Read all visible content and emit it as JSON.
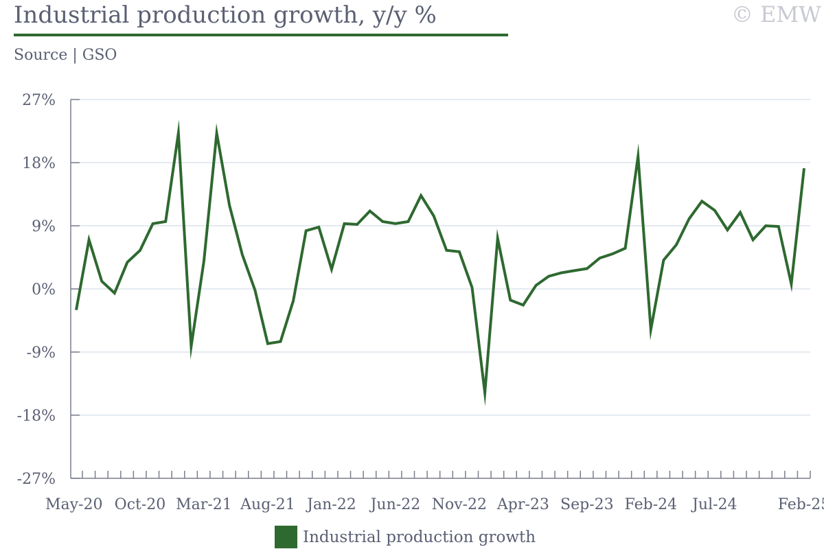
{
  "header": {
    "title": "Industrial production growth, y/y %",
    "source": "Source | GSO",
    "watermark": "© EMW"
  },
  "colors": {
    "series": "#2e6930",
    "grid": "#dce3ec",
    "axis": "#7a7d8c",
    "text": "#5a5f73"
  },
  "chart_data": {
    "type": "line",
    "title": "Industrial production growth, y/y %",
    "xlabel": "",
    "ylabel": "",
    "ylim": [
      -27,
      27
    ],
    "yticks": [
      27,
      18,
      9,
      0,
      -9,
      -18,
      -27
    ],
    "ytick_labels": [
      "27%",
      "18%",
      "9%",
      "0%",
      "-9%",
      "-18%",
      "-27%"
    ],
    "x_tick_labels": [
      {
        "index": 0,
        "label": "May-20"
      },
      {
        "index": 5,
        "label": "Oct-20"
      },
      {
        "index": 10,
        "label": "Mar-21"
      },
      {
        "index": 15,
        "label": "Aug-21"
      },
      {
        "index": 20,
        "label": "Jan-22"
      },
      {
        "index": 25,
        "label": "Jun-22"
      },
      {
        "index": 30,
        "label": "Nov-22"
      },
      {
        "index": 35,
        "label": "Apr-23"
      },
      {
        "index": 40,
        "label": "Sep-23"
      },
      {
        "index": 45,
        "label": "Feb-24"
      },
      {
        "index": 50,
        "label": "Jul-24"
      },
      {
        "index": 57,
        "label": "Feb-25"
      }
    ],
    "grid": true,
    "legend": "bottom-center",
    "series": [
      {
        "name": "Industrial production growth",
        "x": [
          "May-20",
          "Jun-20",
          "Jul-20",
          "Aug-20",
          "Sep-20",
          "Oct-20",
          "Nov-20",
          "Dec-20",
          "Jan-21",
          "Feb-21",
          "Mar-21",
          "Apr-21",
          "May-21",
          "Jun-21",
          "Jul-21",
          "Aug-21",
          "Sep-21",
          "Oct-21",
          "Nov-21",
          "Dec-21",
          "Jan-22",
          "Feb-22",
          "Mar-22",
          "Apr-22",
          "May-22",
          "Jun-22",
          "Jul-22",
          "Aug-22",
          "Sep-22",
          "Oct-22",
          "Nov-22",
          "Dec-22",
          "Jan-23",
          "Feb-23",
          "Mar-23",
          "Apr-23",
          "May-23",
          "Jun-23",
          "Jul-23",
          "Aug-23",
          "Sep-23",
          "Oct-23",
          "Nov-23",
          "Dec-23",
          "Jan-24",
          "Feb-24",
          "Mar-24",
          "Apr-24",
          "May-24",
          "Jun-24",
          "Jul-24",
          "Aug-24",
          "Sep-24",
          "Oct-24",
          "Nov-24",
          "Dec-24",
          "Jan-25",
          "Feb-25"
        ],
        "values": [
          -3.0,
          7.0,
          1.1,
          -0.6,
          3.8,
          5.5,
          9.3,
          9.6,
          22.2,
          -8.2,
          4.0,
          22.2,
          11.9,
          4.9,
          -0.2,
          -7.8,
          -7.5,
          -1.7,
          8.3,
          8.8,
          2.8,
          9.3,
          9.2,
          11.1,
          9.6,
          9.3,
          9.6,
          13.3,
          10.4,
          5.5,
          5.3,
          0.2,
          -14.8,
          7.2,
          -1.6,
          -2.3,
          0.5,
          1.8,
          2.3,
          2.6,
          2.9,
          4.4,
          5.0,
          5.8,
          18.9,
          -5.8,
          4.1,
          6.3,
          10.0,
          12.5,
          11.2,
          8.4,
          10.9,
          7.0,
          9.0,
          8.9,
          0.7,
          17.2
        ]
      }
    ]
  }
}
